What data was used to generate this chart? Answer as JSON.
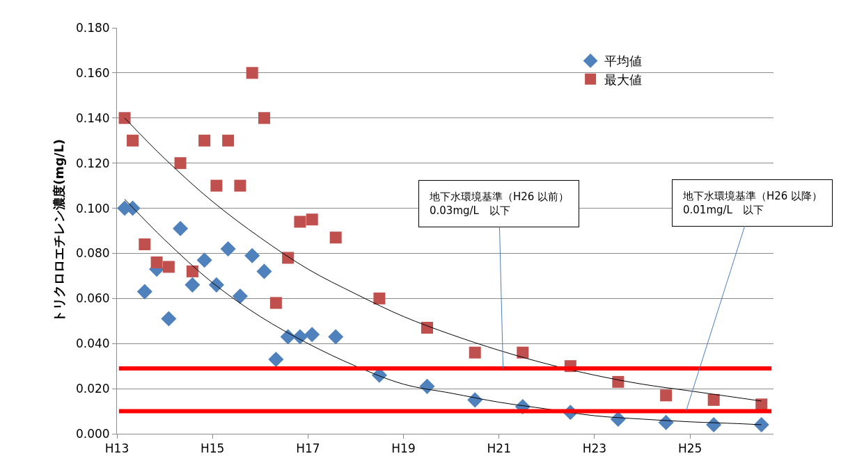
{
  "chart_data": {
    "type": "scatter",
    "ylabel": "トリクロロエチレン濃度(mg/L)",
    "xlim": [
      "2001-01",
      "2014-10"
    ],
    "xticks": [
      {
        "value": "2001-01",
        "label": "H13"
      },
      {
        "value": "2003-01",
        "label": "H15"
      },
      {
        "value": "2005-01",
        "label": "H17"
      },
      {
        "value": "2007-01",
        "label": "H19"
      },
      {
        "value": "2009-01",
        "label": "H21"
      },
      {
        "value": "2011-01",
        "label": "H23"
      },
      {
        "value": "2013-01",
        "label": "H25"
      }
    ],
    "ylim": [
      0,
      0.18
    ],
    "yticks": [
      {
        "value": 0,
        "label": "0.000"
      },
      {
        "value": 0.02,
        "label": "0.020"
      },
      {
        "value": 0.04,
        "label": "0.040"
      },
      {
        "value": 0.06,
        "label": "0.060"
      },
      {
        "value": 0.08,
        "label": "0.080"
      },
      {
        "value": 0.1,
        "label": "0.100"
      },
      {
        "value": 0.12,
        "label": "0.120"
      },
      {
        "value": 0.14,
        "label": "0.140"
      },
      {
        "value": 0.16,
        "label": "0.160"
      },
      {
        "value": 0.18,
        "label": "0.180"
      }
    ],
    "grid": "y",
    "legend": "top right",
    "series": [
      {
        "name": "平均値",
        "color": "#4f81bd",
        "marker": "diamond",
        "x": [
          "2001-03",
          "2001-05",
          "2001-08",
          "2001-11",
          "2002-02",
          "2002-05",
          "2002-08",
          "2002-11",
          "2003-02",
          "2003-05",
          "2003-08",
          "2003-11",
          "2004-02",
          "2004-05",
          "2004-08",
          "2004-11",
          "2005-02",
          "2005-08",
          "2006-07",
          "2007-07",
          "2008-07",
          "2009-07",
          "2010-07",
          "2011-07",
          "2012-07",
          "2013-07",
          "2014-07"
        ],
        "values": [
          0.1,
          0.1,
          0.063,
          0.073,
          0.051,
          0.091,
          0.066,
          0.077,
          0.066,
          0.082,
          0.061,
          0.079,
          0.072,
          0.033,
          0.043,
          0.043,
          0.044,
          0.043,
          0.026,
          0.021,
          0.015,
          0.012,
          0.0095,
          0.0065,
          0.005,
          0.004,
          0.004
        ]
      },
      {
        "name": "最大値",
        "color": "#c0504d",
        "marker": "square",
        "x": [
          "2001-03",
          "2001-05",
          "2001-08",
          "2001-11",
          "2002-02",
          "2002-05",
          "2002-08",
          "2002-11",
          "2003-02",
          "2003-05",
          "2003-08",
          "2003-11",
          "2004-02",
          "2004-05",
          "2004-08",
          "2004-11",
          "2005-02",
          "2005-08",
          "2006-07",
          "2007-07",
          "2008-07",
          "2009-07",
          "2010-07",
          "2011-07",
          "2012-07",
          "2013-07",
          "2014-07"
        ],
        "values": [
          0.14,
          0.13,
          0.084,
          0.076,
          0.074,
          0.12,
          0.072,
          0.13,
          0.11,
          0.13,
          0.11,
          0.16,
          0.14,
          0.058,
          0.078,
          0.094,
          0.095,
          0.087,
          0.06,
          0.047,
          0.036,
          0.036,
          0.03,
          0.023,
          0.017,
          0.015,
          0.013
        ]
      },
      {
        "type": "line",
        "color": "#000000",
        "x": [
          "2001-03",
          "2002-01",
          "2003-01",
          "2004-01",
          "2005-01",
          "2006-01",
          "2007-01",
          "2008-01",
          "2009-01",
          "2010-01",
          "2011-01",
          "2012-01",
          "2013-01",
          "2014-01",
          "2014-07"
        ],
        "values": [
          0.104,
          0.086,
          0.067,
          0.052,
          0.04,
          0.03,
          0.022,
          0.018,
          0.014,
          0.011,
          0.008,
          0.0065,
          0.0053,
          0.0045,
          0.004
        ]
      },
      {
        "type": "line",
        "color": "#000000",
        "x": [
          "2001-03",
          "2002-01",
          "2003-01",
          "2004-01",
          "2005-01",
          "2006-01",
          "2007-01",
          "2008-01",
          "2009-01",
          "2010-01",
          "2011-01",
          "2012-01",
          "2013-01",
          "2014-01",
          "2014-07"
        ],
        "values": [
          0.14,
          0.122,
          0.103,
          0.087,
          0.073,
          0.062,
          0.052,
          0.044,
          0.037,
          0.031,
          0.026,
          0.022,
          0.019,
          0.016,
          0.0145
        ]
      }
    ],
    "ref_lines": [
      {
        "axis": "y",
        "value": 0.029,
        "color": "#ff0000"
      },
      {
        "axis": "y",
        "value": 0.01,
        "color": "#ff0000"
      }
    ],
    "annotations": [
      {
        "text": "地下水環境基準（H26 以前）\n0.03mg/L　以下",
        "x": "2009-02",
        "y": 0.029
      },
      {
        "text": "地下水環境基準（H26 以降）\n0.01mg/L　以下",
        "x": "2012-12",
        "y": 0.01
      }
    ]
  }
}
